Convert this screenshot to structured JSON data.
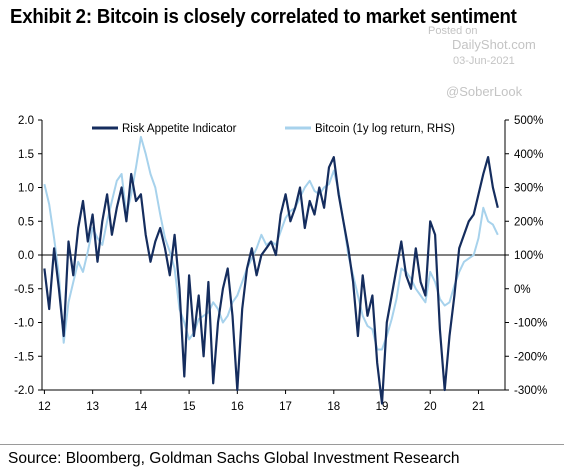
{
  "title": "Exhibit 2: Bitcoin is closely correlated to market sentiment",
  "watermark": {
    "posted_on": "Posted on",
    "site": "DailyShot.com",
    "date": "03-Jun-2021",
    "handle": "@SoberLook"
  },
  "source": "Source: Bloomberg, Goldman Sachs Global Investment Research",
  "chart_data": {
    "type": "line",
    "x_ticks": [
      "12",
      "13",
      "14",
      "15",
      "16",
      "17",
      "18",
      "19",
      "20",
      "21"
    ],
    "y_left_ticks": [
      "2.0",
      "1.5",
      "1.0",
      "0.5",
      "0.0",
      "-0.5",
      "-1.0",
      "-1.5",
      "-2.0"
    ],
    "y_right_ticks": [
      "500%",
      "400%",
      "300%",
      "200%",
      "100%",
      "0%",
      "-100%",
      "-200%",
      "-300%"
    ],
    "ylim_left": [
      -2.0,
      2.0
    ],
    "ylim_right": [
      -300,
      500
    ],
    "xlim": [
      2011.95,
      2021.55
    ],
    "zero_line": 0.0,
    "series": [
      {
        "name": "Risk Appetite Indicator",
        "axis": "left",
        "color": "#152d5e",
        "x": [
          2012.0,
          2012.1,
          2012.2,
          2012.3,
          2012.4,
          2012.5,
          2012.6,
          2012.7,
          2012.8,
          2012.9,
          2013.0,
          2013.1,
          2013.2,
          2013.3,
          2013.4,
          2013.5,
          2013.6,
          2013.7,
          2013.8,
          2013.9,
          2014.0,
          2014.1,
          2014.2,
          2014.3,
          2014.4,
          2014.5,
          2014.6,
          2014.7,
          2014.8,
          2014.9,
          2015.0,
          2015.1,
          2015.2,
          2015.3,
          2015.4,
          2015.5,
          2015.6,
          2015.7,
          2015.8,
          2015.9,
          2016.0,
          2016.1,
          2016.2,
          2016.3,
          2016.4,
          2016.5,
          2016.6,
          2016.7,
          2016.8,
          2016.9,
          2017.0,
          2017.1,
          2017.2,
          2017.3,
          2017.4,
          2017.5,
          2017.6,
          2017.7,
          2017.8,
          2017.9,
          2018.0,
          2018.1,
          2018.2,
          2018.3,
          2018.4,
          2018.5,
          2018.6,
          2018.7,
          2018.8,
          2018.9,
          2019.0,
          2019.1,
          2019.2,
          2019.3,
          2019.4,
          2019.5,
          2019.6,
          2019.7,
          2019.8,
          2019.9,
          2020.0,
          2020.1,
          2020.2,
          2020.3,
          2020.4,
          2020.5,
          2020.6,
          2020.7,
          2020.8,
          2020.9,
          2021.0,
          2021.1,
          2021.2,
          2021.3,
          2021.4
        ],
        "values": [
          -0.2,
          -0.8,
          0.1,
          -0.5,
          -1.2,
          0.2,
          -0.3,
          0.4,
          0.8,
          0.2,
          0.6,
          -0.1,
          0.5,
          0.9,
          0.3,
          0.7,
          1.0,
          0.5,
          1.2,
          0.8,
          0.9,
          0.3,
          -0.1,
          0.2,
          0.4,
          0.1,
          -0.3,
          0.3,
          -0.5,
          -1.8,
          -0.3,
          -1.2,
          -0.6,
          -1.5,
          -0.4,
          -1.9,
          -1.0,
          -0.5,
          -0.2,
          -0.9,
          -2.0,
          -0.8,
          -0.2,
          0.1,
          -0.3,
          0.0,
          0.1,
          0.2,
          0.0,
          0.6,
          0.9,
          0.5,
          0.7,
          1.0,
          0.4,
          0.8,
          0.6,
          1.0,
          0.7,
          1.3,
          1.45,
          0.9,
          0.5,
          0.1,
          -0.4,
          -1.2,
          -0.3,
          -0.9,
          -0.6,
          -1.6,
          -2.2,
          -1.0,
          -0.6,
          -0.2,
          0.2,
          -0.3,
          -0.5,
          0.1,
          -0.4,
          -0.6,
          0.5,
          0.3,
          -1.1,
          -2.0,
          -1.2,
          -0.6,
          0.1,
          0.3,
          0.5,
          0.6,
          0.9,
          1.2,
          1.45,
          1.0,
          0.7
        ]
      },
      {
        "name": "Bitcoin (1y log return, RHS)",
        "axis": "right",
        "color": "#a7d2ec",
        "x": [
          2012.0,
          2012.1,
          2012.2,
          2012.3,
          2012.4,
          2012.5,
          2012.6,
          2012.7,
          2012.8,
          2012.9,
          2013.0,
          2013.1,
          2013.2,
          2013.3,
          2013.4,
          2013.5,
          2013.6,
          2013.7,
          2013.8,
          2013.9,
          2014.0,
          2014.1,
          2014.2,
          2014.3,
          2014.4,
          2014.5,
          2014.6,
          2014.7,
          2014.8,
          2014.9,
          2015.0,
          2015.1,
          2015.2,
          2015.3,
          2015.4,
          2015.5,
          2015.6,
          2015.7,
          2015.8,
          2015.9,
          2016.0,
          2016.1,
          2016.2,
          2016.3,
          2016.4,
          2016.5,
          2016.6,
          2016.7,
          2016.8,
          2016.9,
          2017.0,
          2017.1,
          2017.2,
          2017.3,
          2017.4,
          2017.5,
          2017.6,
          2017.7,
          2017.8,
          2017.9,
          2018.0,
          2018.1,
          2018.2,
          2018.3,
          2018.4,
          2018.5,
          2018.6,
          2018.7,
          2018.8,
          2018.9,
          2019.0,
          2019.1,
          2019.2,
          2019.3,
          2019.4,
          2019.5,
          2019.6,
          2019.7,
          2019.8,
          2019.9,
          2020.0,
          2020.1,
          2020.2,
          2020.3,
          2020.4,
          2020.5,
          2020.6,
          2020.7,
          2020.8,
          2020.9,
          2021.0,
          2021.1,
          2021.2,
          2021.3,
          2021.4
        ],
        "values": [
          310,
          250,
          150,
          40,
          -160,
          -40,
          20,
          80,
          50,
          110,
          180,
          150,
          130,
          200,
          260,
          320,
          340,
          220,
          280,
          360,
          450,
          400,
          340,
          300,
          220,
          150,
          110,
          60,
          -60,
          -100,
          -150,
          -130,
          -90,
          -80,
          -70,
          -40,
          -60,
          -100,
          -80,
          -40,
          -20,
          20,
          60,
          90,
          120,
          160,
          130,
          140,
          130,
          170,
          210,
          230,
          240,
          270,
          300,
          320,
          290,
          280,
          300,
          310,
          350,
          290,
          200,
          100,
          40,
          -20,
          -80,
          -110,
          -120,
          -180,
          -180,
          -140,
          -90,
          -30,
          60,
          50,
          30,
          0,
          -20,
          -40,
          50,
          20,
          -30,
          -50,
          -40,
          10,
          50,
          80,
          90,
          100,
          150,
          240,
          200,
          190,
          160
        ]
      }
    ]
  }
}
